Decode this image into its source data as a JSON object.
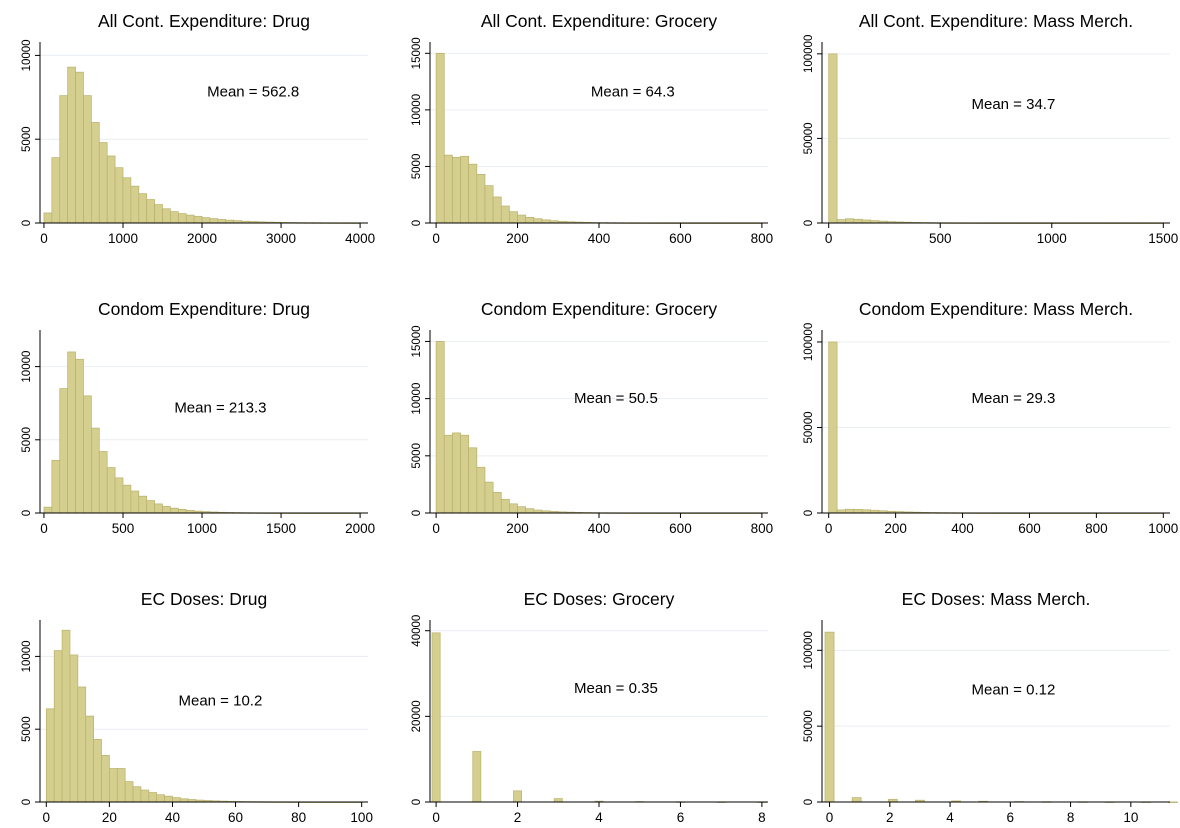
{
  "style": {
    "bar_fill": "#d5cf8f",
    "bar_stroke": "#b9b06a",
    "grid": "#e9eef2",
    "axis": "#000000"
  },
  "chart_data": [
    {
      "type": "bar",
      "title": "All Cont. Expenditure: Drug",
      "annotation": "Mean = 562.8",
      "xlim": [
        -50,
        4100
      ],
      "xticks": [
        0,
        1000,
        2000,
        3000,
        4000
      ],
      "ylim": [
        0,
        10800
      ],
      "yticks": [
        0,
        5000,
        10000
      ],
      "bin_width": 100,
      "bin_start": 0,
      "values": [
        600,
        3900,
        7600,
        9300,
        9000,
        7600,
        6000,
        4800,
        4000,
        3300,
        2700,
        2200,
        1750,
        1400,
        1100,
        850,
        680,
        560,
        470,
        400,
        320,
        260,
        210,
        170,
        140,
        110,
        90,
        70,
        55,
        45,
        35,
        28,
        22,
        18,
        15,
        12,
        10,
        8,
        6,
        5
      ]
    },
    {
      "type": "bar",
      "title": "All Cont. Expenditure: Grocery",
      "annotation": "Mean = 64.3",
      "xlim": [
        -15,
        815
      ],
      "xticks": [
        0,
        200,
        400,
        600,
        800
      ],
      "ylim": [
        0,
        16000
      ],
      "yticks": [
        0,
        5000,
        10000,
        15000
      ],
      "bin_width": 20,
      "bin_start": 0,
      "values": [
        15000,
        6000,
        5800,
        5900,
        5200,
        4300,
        3300,
        2300,
        1500,
        1000,
        700,
        500,
        380,
        280,
        200,
        150,
        110,
        80,
        60,
        45,
        35,
        25,
        18,
        14,
        10,
        8,
        6,
        5,
        4,
        3,
        3,
        2,
        2,
        2,
        1,
        1,
        1,
        1,
        1,
        1
      ]
    },
    {
      "type": "bar",
      "title": "All Cont. Expenditure: Mass Merch.",
      "annotation": "Mean = 34.7",
      "xlim": [
        -30,
        1530
      ],
      "xticks": [
        0,
        500,
        1000,
        1500
      ],
      "ylim": [
        0,
        107000
      ],
      "yticks": [
        0,
        50000,
        100000
      ],
      "bin_width": 37.5,
      "bin_start": 0,
      "values": [
        100000,
        2000,
        2500,
        2200,
        1800,
        1400,
        1100,
        800,
        600,
        450,
        350,
        260,
        190,
        140,
        100,
        80,
        60,
        45,
        35,
        25,
        20,
        15,
        12,
        10,
        8,
        6,
        5,
        4,
        3,
        3,
        2,
        2,
        2,
        1,
        1,
        1,
        1,
        1,
        1,
        1
      ]
    },
    {
      "type": "bar",
      "title": "Condom Expenditure: Drug",
      "annotation": "Mean = 213.3",
      "xlim": [
        -25,
        2050
      ],
      "xticks": [
        0,
        500,
        1000,
        1500,
        2000
      ],
      "ylim": [
        0,
        12500
      ],
      "yticks": [
        0,
        5000,
        10000
      ],
      "bin_width": 50,
      "bin_start": 0,
      "values": [
        400,
        3600,
        8500,
        11000,
        10500,
        8000,
        5800,
        4200,
        3100,
        2400,
        1900,
        1500,
        1150,
        850,
        620,
        450,
        330,
        250,
        180,
        130,
        95,
        70,
        50,
        38,
        28,
        20,
        15,
        11,
        8,
        6,
        5,
        4,
        3,
        2,
        2,
        1,
        1,
        1,
        1,
        1
      ]
    },
    {
      "type": "bar",
      "title": "Condom Expenditure: Grocery",
      "annotation": "Mean = 50.5",
      "xlim": [
        -15,
        815
      ],
      "xticks": [
        0,
        200,
        400,
        600,
        800
      ],
      "ylim": [
        0,
        16000
      ],
      "yticks": [
        0,
        5000,
        10000,
        15000
      ],
      "bin_width": 20,
      "bin_start": 0,
      "values": [
        15000,
        6800,
        7000,
        6800,
        5700,
        4000,
        2700,
        1800,
        1200,
        800,
        550,
        380,
        260,
        190,
        140,
        100,
        75,
        55,
        40,
        30,
        22,
        16,
        12,
        9,
        7,
        5,
        4,
        3,
        3,
        2,
        2,
        2,
        1,
        1,
        1,
        1,
        1,
        1,
        1,
        1
      ]
    },
    {
      "type": "bar",
      "title": "Condom Expenditure: Mass Merch.",
      "annotation": "Mean = 29.3",
      "xlim": [
        -20,
        1020
      ],
      "xticks": [
        0,
        200,
        400,
        600,
        800,
        1000
      ],
      "ylim": [
        0,
        107000
      ],
      "yticks": [
        0,
        50000,
        100000
      ],
      "bin_width": 25,
      "bin_start": 0,
      "values": [
        100000,
        1800,
        2200,
        2100,
        1900,
        1600,
        1300,
        1000,
        800,
        620,
        480,
        370,
        280,
        210,
        160,
        120,
        90,
        70,
        52,
        40,
        30,
        23,
        18,
        14,
        11,
        8,
        6,
        5,
        4,
        3,
        2,
        2,
        2,
        1,
        1,
        1,
        1,
        1,
        1,
        1
      ]
    },
    {
      "type": "bar",
      "title": "EC Doses: Drug",
      "annotation": "Mean = 10.2",
      "xlim": [
        -2,
        102
      ],
      "xticks": [
        0,
        20,
        40,
        60,
        80,
        100
      ],
      "ylim": [
        0,
        12500
      ],
      "yticks": [
        0,
        5000,
        10000
      ],
      "bin_width": 2.5,
      "bin_start": 0,
      "values": [
        6400,
        10400,
        11800,
        10100,
        7900,
        5900,
        4300,
        3200,
        2300,
        2300,
        1400,
        1050,
        820,
        650,
        500,
        400,
        300,
        220,
        170,
        130,
        100,
        80,
        60,
        48,
        38,
        30,
        24,
        18,
        14,
        11,
        9,
        7,
        6,
        5,
        4,
        3,
        3,
        2,
        2,
        2
      ]
    },
    {
      "type": "bar",
      "title": "EC Doses: Grocery",
      "annotation": "Mean = 0.35",
      "xlim": [
        -0.15,
        8.15
      ],
      "xticks": [
        0,
        2,
        4,
        6,
        8
      ],
      "ylim": [
        0,
        42500
      ],
      "yticks": [
        0,
        20000,
        40000
      ],
      "bin_width": 0.2,
      "bin_start": -0.1,
      "values": [
        39500,
        0,
        0,
        0,
        0,
        11800,
        0,
        0,
        0,
        0,
        2600,
        0,
        0,
        0,
        0,
        800,
        0,
        0,
        0,
        0,
        200,
        0,
        0,
        0,
        0,
        100,
        0,
        0,
        0,
        0,
        50,
        0,
        0,
        0,
        0,
        30,
        0,
        0,
        0,
        0,
        20
      ]
    },
    {
      "type": "bar",
      "title": "EC Doses: Mass Merch.",
      "annotation": "Mean = 0.12",
      "xlim": [
        -0.25,
        11.3
      ],
      "xticks": [
        0,
        2,
        4,
        6,
        8,
        10
      ],
      "ylim": [
        0,
        120000
      ],
      "yticks": [
        0,
        50000,
        100000
      ],
      "bin_width": 0.3,
      "bin_start": -0.15,
      "values": [
        112000,
        0,
        0,
        2900,
        0,
        0,
        0,
        1800,
        0,
        0,
        1200,
        0,
        0,
        0,
        700,
        0,
        0,
        500,
        0,
        0,
        0,
        300,
        0,
        0,
        200,
        0,
        0,
        0,
        150,
        0,
        0,
        100,
        0,
        0,
        0,
        80,
        0,
        0,
        50
      ]
    }
  ]
}
